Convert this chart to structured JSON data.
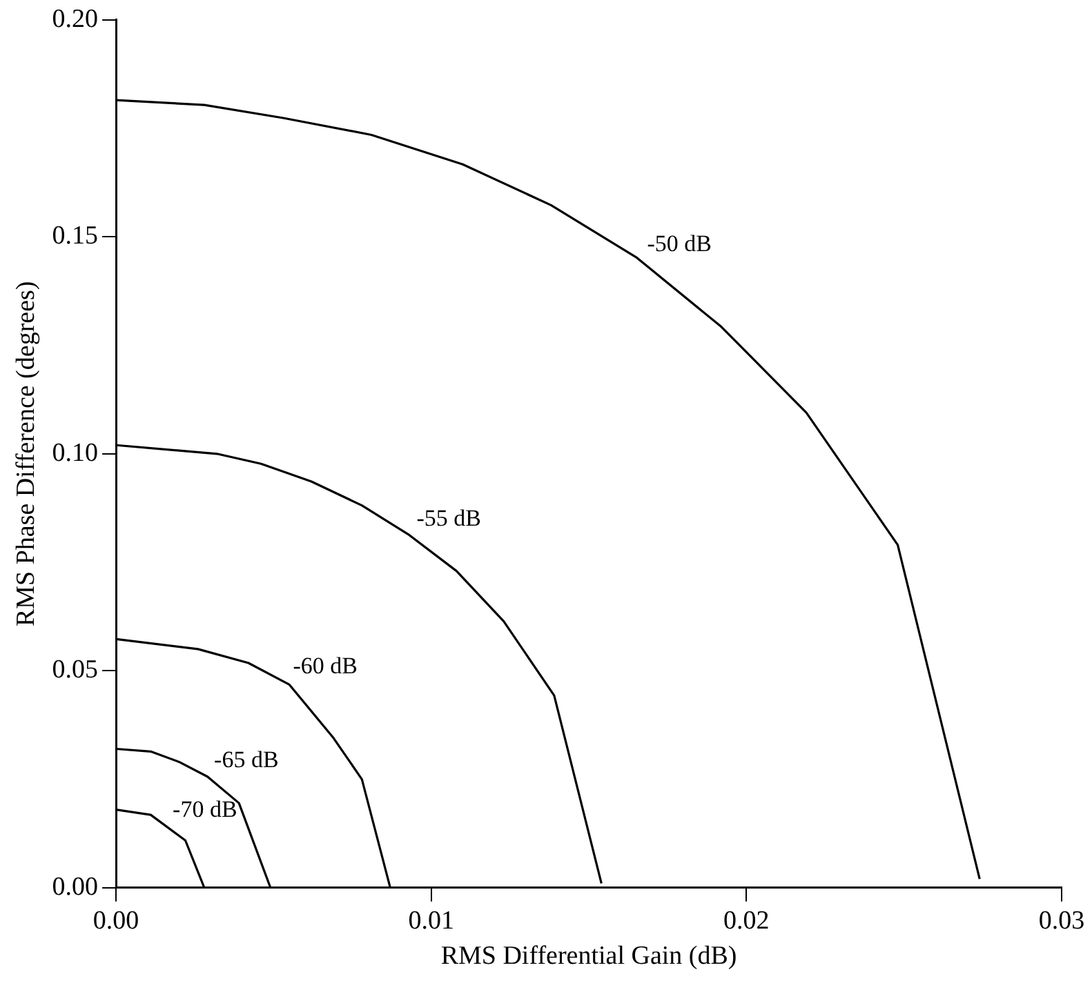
{
  "chart_data": {
    "type": "line",
    "xlabel": "RMS Differential Gain (dB)",
    "ylabel": "RMS Phase Difference (degrees)",
    "xlim": [
      0,
      0.03
    ],
    "xticks": [
      {
        "value": 0,
        "label": "0.00"
      },
      0.01,
      0.02,
      0.03
    ],
    "ylim": [
      0,
      0.2
    ],
    "yticks": [
      {
        "value": 0,
        "label": "0.00"
      },
      0.05,
      {
        "value": 0.1,
        "label": "0.10"
      },
      0.15,
      {
        "value": 0.2,
        "label": "0.20"
      }
    ],
    "grid": false,
    "legend": false,
    "marker": "none",
    "line_style": "solid",
    "series": [
      {
        "name": "-50 dB",
        "color": "#000000",
        "x": [
          0,
          0.0028,
          0.0053,
          0.0081,
          0.011,
          0.0138,
          0.0165,
          0.0192,
          0.0219,
          0.0248,
          0.0274
        ],
        "values": [
          0.1815,
          0.1804,
          0.1774,
          0.1735,
          0.1667,
          0.1573,
          0.1453,
          0.1293,
          0.1095,
          0.079,
          0.002
        ]
      },
      {
        "name": "-55 dB",
        "color": "#000000",
        "x": [
          0,
          0.0032,
          0.0046,
          0.0062,
          0.0078,
          0.0093,
          0.0108,
          0.0123,
          0.0139,
          0.0154
        ],
        "values": [
          0.102,
          0.1,
          0.0977,
          0.0936,
          0.0881,
          0.0813,
          0.073,
          0.0614,
          0.0443,
          0.001
        ]
      },
      {
        "name": "-60 dB",
        "color": "#000000",
        "x": [
          0,
          0.0026,
          0.0042,
          0.0055,
          0.0069,
          0.0078,
          0.0087
        ],
        "values": [
          0.0573,
          0.055,
          0.0518,
          0.0468,
          0.0345,
          0.025,
          0
        ]
      },
      {
        "name": "-65 dB",
        "color": "#000000",
        "x": [
          0,
          0.0011,
          0.002,
          0.0029,
          0.0039,
          0.0049
        ],
        "values": [
          0.032,
          0.0314,
          0.029,
          0.0256,
          0.0195,
          0
        ]
      },
      {
        "name": "-70 dB",
        "color": "#000000",
        "x": [
          0,
          0.0011,
          0.0022,
          0.0028
        ],
        "values": [
          0.018,
          0.0168,
          0.0109,
          0
        ]
      }
    ]
  }
}
